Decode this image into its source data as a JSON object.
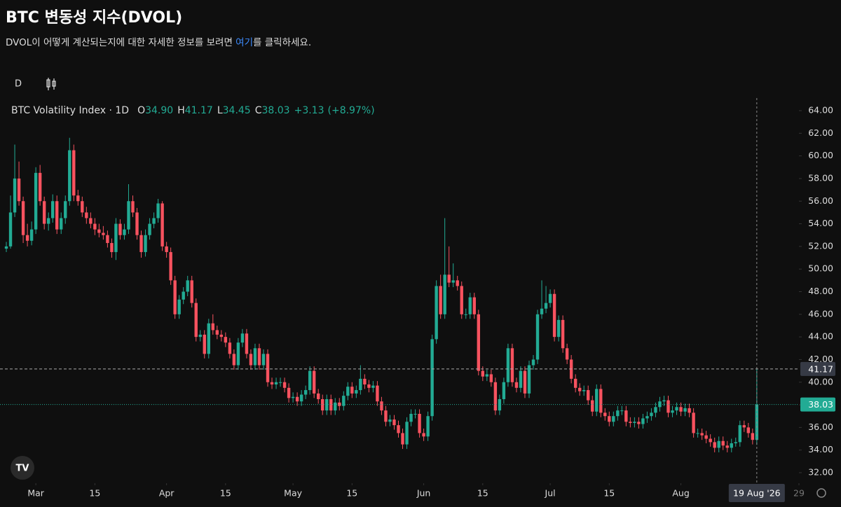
{
  "header": {
    "title": "BTC 변동성 지수(DVOL)",
    "description": {
      "before": "DVOL이 어떻게 계산되는지에 대한 자세한 정보를 보려면 ",
      "link": "여기",
      "after": "를 클릭하세요."
    }
  },
  "toolbar": {
    "interval": "D"
  },
  "chart_data": {
    "type": "candlestick",
    "title": "BTC Volatility Index · 1D",
    "legend": {
      "open_label": "O",
      "open": "34.90",
      "high_label": "H",
      "high": "41.17",
      "low_label": "L",
      "low": "34.45",
      "close_label": "C",
      "close": "38.03",
      "change": "+3.13",
      "change_pct": "(+8.97%)"
    },
    "up_color": "#22ab94",
    "down_color": "#f7525f",
    "xlim": [
      -1.5,
      188
    ],
    "xticks": [
      {
        "value": 7,
        "label": "Mar"
      },
      {
        "value": 21,
        "label": "15"
      },
      {
        "value": 38,
        "label": "Apr"
      },
      {
        "value": 52,
        "label": "15"
      },
      {
        "value": 68,
        "label": "May"
      },
      {
        "value": 82,
        "label": "15"
      },
      {
        "value": 99,
        "label": "Jun"
      },
      {
        "value": 113,
        "label": "15"
      },
      {
        "value": 129,
        "label": "Jul"
      },
      {
        "value": 143,
        "label": "15"
      },
      {
        "value": 160,
        "label": "Aug"
      },
      {
        "value": 188,
        "label": "29"
      }
    ],
    "ylim": [
      32,
      64
    ],
    "yticks": [
      {
        "value": 32,
        "label": "32.00"
      },
      {
        "value": 34,
        "label": "34.00"
      },
      {
        "value": 36,
        "label": "36.00"
      },
      {
        "value": 38,
        "label": "38.00"
      },
      {
        "value": 40,
        "label": "40.00"
      },
      {
        "value": 42,
        "label": "42.00"
      },
      {
        "value": 44,
        "label": "44.00"
      },
      {
        "value": 46,
        "label": "46.00"
      },
      {
        "value": 48,
        "label": "48.00"
      },
      {
        "value": 50,
        "label": "50.00"
      },
      {
        "value": 52,
        "label": "52.00"
      },
      {
        "value": 54,
        "label": "54.00"
      },
      {
        "value": 56,
        "label": "56.00"
      },
      {
        "value": 58,
        "label": "58.00"
      },
      {
        "value": 60,
        "label": "60.00"
      },
      {
        "value": 62,
        "label": "62.00"
      },
      {
        "value": 64,
        "label": "64.00"
      }
    ],
    "crosshair_label": "19 Aug '26",
    "ohlc": [
      [
        51.8,
        52.4,
        51.5,
        52.0
      ],
      [
        52.0,
        56.5,
        51.8,
        55.0
      ],
      [
        55.0,
        61.0,
        54.6,
        58.0
      ],
      [
        58.0,
        59.5,
        55.6,
        56.0
      ],
      [
        56.0,
        56.4,
        52.3,
        53.0
      ],
      [
        53.0,
        54.0,
        52.0,
        52.5
      ],
      [
        52.5,
        54.2,
        52.1,
        53.5
      ],
      [
        53.5,
        59.0,
        53.1,
        58.5
      ],
      [
        58.5,
        59.2,
        55.6,
        56.0
      ],
      [
        56.0,
        56.4,
        53.5,
        54.0
      ],
      [
        54.0,
        55.0,
        53.4,
        54.5
      ],
      [
        54.5,
        56.6,
        54.1,
        56.0
      ],
      [
        56.0,
        56.5,
        53.1,
        53.5
      ],
      [
        53.5,
        55.0,
        53.1,
        54.5
      ],
      [
        54.5,
        56.5,
        54.0,
        56.0
      ],
      [
        56.0,
        61.6,
        55.6,
        60.5
      ],
      [
        60.5,
        61.0,
        56.0,
        56.5
      ],
      [
        56.5,
        57.0,
        55.6,
        56.0
      ],
      [
        56.0,
        56.4,
        54.6,
        55.0
      ],
      [
        55.0,
        55.5,
        54.0,
        54.5
      ],
      [
        54.5,
        55.0,
        53.6,
        54.0
      ],
      [
        54.0,
        54.5,
        53.0,
        53.5
      ],
      [
        53.5,
        54.0,
        52.8,
        53.2
      ],
      [
        53.2,
        53.8,
        52.6,
        53.0
      ],
      [
        53.0,
        53.4,
        51.9,
        52.3
      ],
      [
        52.3,
        52.7,
        51.0,
        51.5
      ],
      [
        51.5,
        54.5,
        50.8,
        54.0
      ],
      [
        54.0,
        54.4,
        52.6,
        53.0
      ],
      [
        53.0,
        54.0,
        52.6,
        53.5
      ],
      [
        53.5,
        57.5,
        53.1,
        56.0
      ],
      [
        56.0,
        56.5,
        54.6,
        55.0
      ],
      [
        55.0,
        55.4,
        52.6,
        53.0
      ],
      [
        53.0,
        53.4,
        51.0,
        51.5
      ],
      [
        51.5,
        53.5,
        51.1,
        53.0
      ],
      [
        53.0,
        54.5,
        52.6,
        54.0
      ],
      [
        54.0,
        55.0,
        53.6,
        54.5
      ],
      [
        54.5,
        56.2,
        54.1,
        55.8
      ],
      [
        55.8,
        56.0,
        51.6,
        52.0
      ],
      [
        52.0,
        52.4,
        51.0,
        51.5
      ],
      [
        51.5,
        51.9,
        48.6,
        49.0
      ],
      [
        49.0,
        49.4,
        45.6,
        46.0
      ],
      [
        46.0,
        47.7,
        45.6,
        47.3
      ],
      [
        47.3,
        48.4,
        46.9,
        48.0
      ],
      [
        48.0,
        49.4,
        47.6,
        49.0
      ],
      [
        49.0,
        49.4,
        46.6,
        47.0
      ],
      [
        47.0,
        47.4,
        43.6,
        44.0
      ],
      [
        44.0,
        44.6,
        43.6,
        44.2
      ],
      [
        44.2,
        44.6,
        42.1,
        42.5
      ],
      [
        42.5,
        45.6,
        42.1,
        45.2
      ],
      [
        45.2,
        46.0,
        44.2,
        44.6
      ],
      [
        44.6,
        45.0,
        43.8,
        44.2
      ],
      [
        44.2,
        44.6,
        43.6,
        44.0
      ],
      [
        44.0,
        44.4,
        43.1,
        43.5
      ],
      [
        43.5,
        43.9,
        42.1,
        42.5
      ],
      [
        42.5,
        42.9,
        41.1,
        41.5
      ],
      [
        41.5,
        43.9,
        41.1,
        43.5
      ],
      [
        43.5,
        44.7,
        43.1,
        44.3
      ],
      [
        44.3,
        44.7,
        42.1,
        42.5
      ],
      [
        42.5,
        42.9,
        41.1,
        41.5
      ],
      [
        41.5,
        43.4,
        41.1,
        43.0
      ],
      [
        43.0,
        43.4,
        41.1,
        41.5
      ],
      [
        41.5,
        42.9,
        41.1,
        42.5
      ],
      [
        42.5,
        42.9,
        39.6,
        40.0
      ],
      [
        40.0,
        40.4,
        39.4,
        39.8
      ],
      [
        39.8,
        40.4,
        39.4,
        40.0
      ],
      [
        40.0,
        40.4,
        39.6,
        40.0
      ],
      [
        40.0,
        40.4,
        39.1,
        39.5
      ],
      [
        39.5,
        39.9,
        38.2,
        38.6
      ],
      [
        38.6,
        39.1,
        38.2,
        38.7
      ],
      [
        38.7,
        39.1,
        37.9,
        38.3
      ],
      [
        38.3,
        39.3,
        37.9,
        38.9
      ],
      [
        38.9,
        39.7,
        38.5,
        39.3
      ],
      [
        39.3,
        41.4,
        38.9,
        41.0
      ],
      [
        41.0,
        41.4,
        38.6,
        39.0
      ],
      [
        39.0,
        39.4,
        38.1,
        38.5
      ],
      [
        38.5,
        38.9,
        37.1,
        37.5
      ],
      [
        37.5,
        38.9,
        37.1,
        38.5
      ],
      [
        38.5,
        38.9,
        37.1,
        37.5
      ],
      [
        37.5,
        38.6,
        37.1,
        38.2
      ],
      [
        38.2,
        38.6,
        37.5,
        37.9
      ],
      [
        37.9,
        39.2,
        37.5,
        38.8
      ],
      [
        38.8,
        40.0,
        38.4,
        39.6
      ],
      [
        39.6,
        40.0,
        38.6,
        39.0
      ],
      [
        39.0,
        39.7,
        38.6,
        39.3
      ],
      [
        39.3,
        41.5,
        38.9,
        40.3
      ],
      [
        40.3,
        40.7,
        39.4,
        39.8
      ],
      [
        39.8,
        40.2,
        39.1,
        39.5
      ],
      [
        39.5,
        40.1,
        39.1,
        39.7
      ],
      [
        39.7,
        40.1,
        37.9,
        38.3
      ],
      [
        38.3,
        38.7,
        37.1,
        37.5
      ],
      [
        37.5,
        37.9,
        36.1,
        36.5
      ],
      [
        36.5,
        37.1,
        36.1,
        36.7
      ],
      [
        36.7,
        37.1,
        35.8,
        36.2
      ],
      [
        36.2,
        36.6,
        35.1,
        35.5
      ],
      [
        35.5,
        35.9,
        34.1,
        34.5
      ],
      [
        34.5,
        36.9,
        34.1,
        36.5
      ],
      [
        36.5,
        37.6,
        36.1,
        37.2
      ],
      [
        37.2,
        37.6,
        36.8,
        37.2
      ],
      [
        37.2,
        37.6,
        35.1,
        35.5
      ],
      [
        35.5,
        35.9,
        34.8,
        35.2
      ],
      [
        35.2,
        37.4,
        34.8,
        37.0
      ],
      [
        37.0,
        44.2,
        36.6,
        43.8
      ],
      [
        43.8,
        49.0,
        43.4,
        48.5
      ],
      [
        48.5,
        49.5,
        45.6,
        46.0
      ],
      [
        46.0,
        54.5,
        45.6,
        49.5
      ],
      [
        49.5,
        52.0,
        48.4,
        48.8
      ],
      [
        48.8,
        50.5,
        48.4,
        49.0
      ],
      [
        49.0,
        49.4,
        48.1,
        48.5
      ],
      [
        48.5,
        48.9,
        45.6,
        46.0
      ],
      [
        46.0,
        46.5,
        45.6,
        46.0
      ],
      [
        46.0,
        47.9,
        45.6,
        47.5
      ],
      [
        47.5,
        47.9,
        45.6,
        46.0
      ],
      [
        46.0,
        46.4,
        40.6,
        41.0
      ],
      [
        41.0,
        41.4,
        40.1,
        40.5
      ],
      [
        40.5,
        41.1,
        40.1,
        40.7
      ],
      [
        40.7,
        41.1,
        39.6,
        40.0
      ],
      [
        40.0,
        40.4,
        37.1,
        37.5
      ],
      [
        37.5,
        38.9,
        37.1,
        38.5
      ],
      [
        38.5,
        40.4,
        38.1,
        40.0
      ],
      [
        40.0,
        43.4,
        39.6,
        43.0
      ],
      [
        43.0,
        43.4,
        39.6,
        40.0
      ],
      [
        40.0,
        40.4,
        39.1,
        39.5
      ],
      [
        39.5,
        41.4,
        39.1,
        41.0
      ],
      [
        41.0,
        41.4,
        38.6,
        39.0
      ],
      [
        39.0,
        41.9,
        38.6,
        41.5
      ],
      [
        41.5,
        42.4,
        41.1,
        42.0
      ],
      [
        42.0,
        46.4,
        41.6,
        46.0
      ],
      [
        46.0,
        49.0,
        45.6,
        46.5
      ],
      [
        46.5,
        48.5,
        46.1,
        47.0
      ],
      [
        47.0,
        48.2,
        46.6,
        47.8
      ],
      [
        47.8,
        48.2,
        43.6,
        44.0
      ],
      [
        44.0,
        45.9,
        43.6,
        45.5
      ],
      [
        45.5,
        45.9,
        42.6,
        43.0
      ],
      [
        43.0,
        43.4,
        41.6,
        42.0
      ],
      [
        42.0,
        42.4,
        39.9,
        40.3
      ],
      [
        40.3,
        40.7,
        39.1,
        39.5
      ],
      [
        39.5,
        39.9,
        38.8,
        39.2
      ],
      [
        39.2,
        39.7,
        38.8,
        39.3
      ],
      [
        39.3,
        39.7,
        38.0,
        38.4
      ],
      [
        38.4,
        38.8,
        37.0,
        37.4
      ],
      [
        37.4,
        39.8,
        37.0,
        39.4
      ],
      [
        39.4,
        39.8,
        36.9,
        37.3
      ],
      [
        37.3,
        37.7,
        36.6,
        37.0
      ],
      [
        37.0,
        37.4,
        36.1,
        36.5
      ],
      [
        36.5,
        37.4,
        36.1,
        37.0
      ],
      [
        37.0,
        37.9,
        36.6,
        37.5
      ],
      [
        37.5,
        37.9,
        37.1,
        37.5
      ],
      [
        37.5,
        37.9,
        36.1,
        36.5
      ],
      [
        36.5,
        36.9,
        36.0,
        36.4
      ],
      [
        36.4,
        36.9,
        36.0,
        36.5
      ],
      [
        36.5,
        36.9,
        35.9,
        36.3
      ],
      [
        36.3,
        37.2,
        35.9,
        36.8
      ],
      [
        36.8,
        37.4,
        36.4,
        37.0
      ],
      [
        37.0,
        37.7,
        36.6,
        37.3
      ],
      [
        37.3,
        38.2,
        36.9,
        37.8
      ],
      [
        37.8,
        38.7,
        37.4,
        38.3
      ],
      [
        38.3,
        38.8,
        37.9,
        38.4
      ],
      [
        38.4,
        38.8,
        36.9,
        37.3
      ],
      [
        37.3,
        37.9,
        36.9,
        37.5
      ],
      [
        37.5,
        38.2,
        37.1,
        37.8
      ],
      [
        37.8,
        38.2,
        37.0,
        37.4
      ],
      [
        37.4,
        38.1,
        37.0,
        37.7
      ],
      [
        37.7,
        38.1,
        36.9,
        37.3
      ],
      [
        37.3,
        37.7,
        35.1,
        35.5
      ],
      [
        35.5,
        35.9,
        35.1,
        35.5
      ],
      [
        35.5,
        35.9,
        34.9,
        35.3
      ],
      [
        35.3,
        35.7,
        34.6,
        35.0
      ],
      [
        35.0,
        35.4,
        34.3,
        34.7
      ],
      [
        34.7,
        35.1,
        33.8,
        34.2
      ],
      [
        34.2,
        35.2,
        33.8,
        34.8
      ],
      [
        34.8,
        35.2,
        34.0,
        34.4
      ],
      [
        34.4,
        34.8,
        33.8,
        34.2
      ],
      [
        34.2,
        35.0,
        33.8,
        34.6
      ],
      [
        34.6,
        35.1,
        34.3,
        34.7
      ],
      [
        34.7,
        36.6,
        34.3,
        36.2
      ],
      [
        36.2,
        36.6,
        35.6,
        36.0
      ],
      [
        36.0,
        36.4,
        35.1,
        35.5
      ],
      [
        35.5,
        35.9,
        34.5,
        34.9
      ],
      [
        34.9,
        41.17,
        34.45,
        38.03
      ]
    ]
  }
}
